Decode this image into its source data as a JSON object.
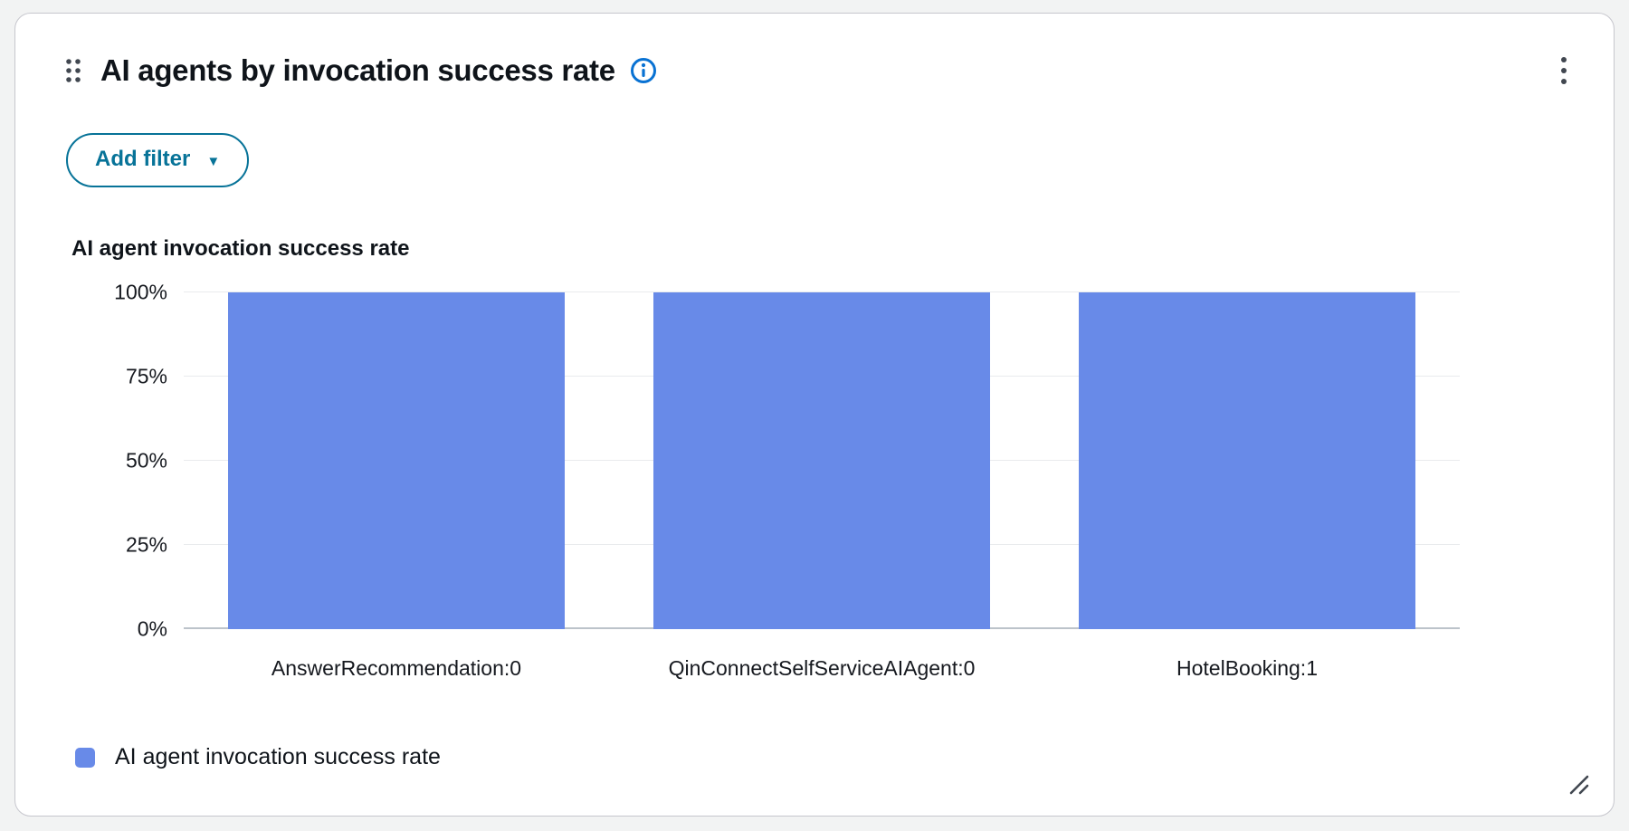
{
  "widget": {
    "title": "AI agents by invocation success rate",
    "add_filter": {
      "label": "Add filter",
      "caret": "▼"
    },
    "icons": {
      "drag_handle": "drag-handle",
      "info": "info-circle",
      "menu": "vertical-ellipsis",
      "caret": "chevron-down",
      "resize": "resize-diagonal"
    },
    "colors": {
      "accent_blue": "#0972D3",
      "button_teal": "#077398",
      "bar_blue": "#688AE8",
      "card_background": "#FFFFFF",
      "page_background": "#F2F3F3",
      "gridline": "#E9EBED"
    }
  },
  "chart_data": {
    "type": "bar",
    "title": "AI agent invocation success rate",
    "series_name": "AI agent invocation success rate",
    "categories": [
      "AnswerRecommendation:0",
      "QinConnectSelfServiceAIAgent:0",
      "HotelBooking:1"
    ],
    "values": [
      100,
      100,
      100
    ],
    "unit": "%",
    "xlabel": "",
    "ylabel": "",
    "ylim": [
      0,
      100
    ],
    "yticks": [
      0,
      25,
      50,
      75,
      100
    ],
    "ytick_labels": [
      "0%",
      "25%",
      "50%",
      "75%",
      "100%"
    ],
    "grid": true,
    "legend_position": "bottom-left",
    "bar_color": "#688AE8"
  }
}
